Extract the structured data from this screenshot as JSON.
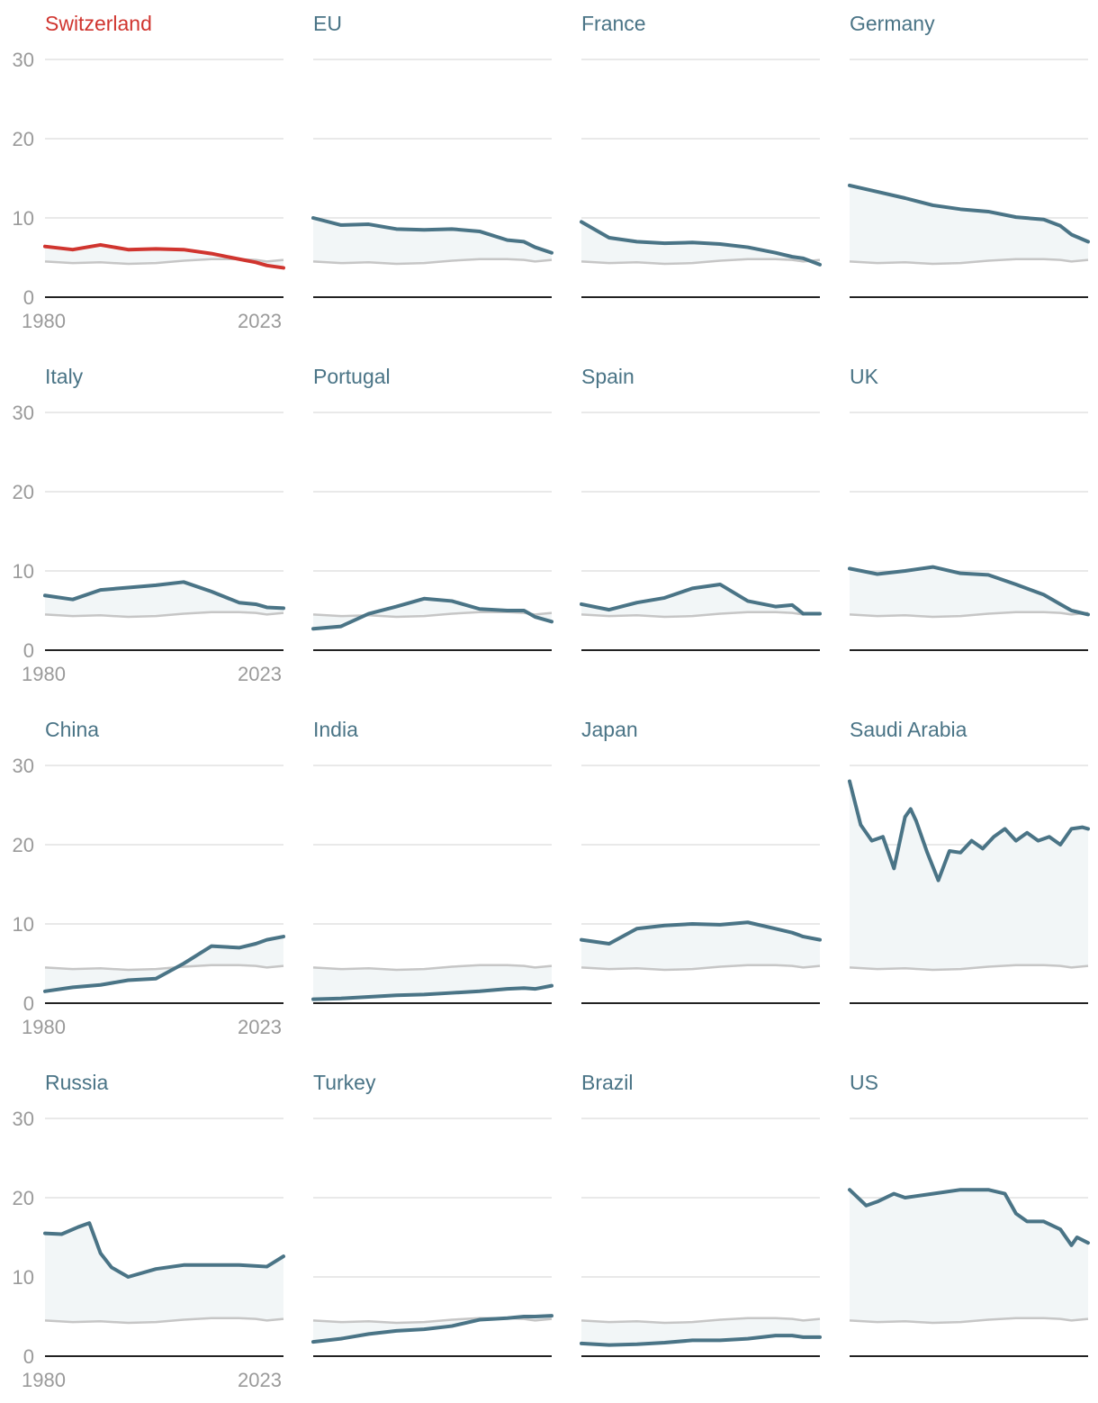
{
  "colors": {
    "highlight": "#d0352f",
    "series": "#4a7486",
    "title": "#4a7486",
    "reference": "#c6c6c6",
    "fill": "#f2f6f7",
    "grid": "#e2e2e2",
    "axis": "#222222",
    "tick": "#9a9a9a"
  },
  "chart_data": {
    "type": "line",
    "layout": "small-multiples",
    "grid": true,
    "ylim": [
      0,
      30
    ],
    "y_ticks": [
      "0",
      "10",
      "20",
      "30"
    ],
    "x_range": [
      1980,
      2023
    ],
    "x_tick_labels": [
      "1980",
      "2023"
    ],
    "highlight": "Switzerland",
    "reference_series": {
      "x": [
        1980,
        1985,
        1990,
        1995,
        2000,
        2005,
        2010,
        2015,
        2018,
        2020,
        2023
      ],
      "values": [
        4.5,
        4.3,
        4.4,
        4.2,
        4.3,
        4.6,
        4.8,
        4.8,
        4.7,
        4.5,
        4.7
      ]
    },
    "panels": [
      {
        "title": "Switzerland",
        "highlight": true,
        "show_axis_labels": true,
        "x": [
          1980,
          1985,
          1990,
          1995,
          2000,
          2005,
          2010,
          2015,
          2018,
          2020,
          2023
        ],
        "values": [
          6.4,
          6.0,
          6.6,
          6.0,
          6.1,
          6.0,
          5.5,
          4.8,
          4.4,
          4.0,
          3.7
        ]
      },
      {
        "title": "EU",
        "show_axis_labels": false,
        "x": [
          1980,
          1985,
          1990,
          1995,
          2000,
          2005,
          2010,
          2015,
          2018,
          2020,
          2023
        ],
        "values": [
          10.0,
          9.1,
          9.2,
          8.6,
          8.5,
          8.6,
          8.3,
          7.2,
          7.0,
          6.3,
          5.6
        ]
      },
      {
        "title": "France",
        "show_axis_labels": false,
        "x": [
          1980,
          1985,
          1990,
          1995,
          2000,
          2005,
          2010,
          2015,
          2018,
          2020,
          2023
        ],
        "values": [
          9.5,
          7.5,
          7.0,
          6.8,
          6.9,
          6.7,
          6.3,
          5.6,
          5.1,
          4.9,
          4.1
        ]
      },
      {
        "title": "Germany",
        "show_axis_labels": false,
        "x": [
          1980,
          1985,
          1990,
          1995,
          2000,
          2005,
          2010,
          2015,
          2018,
          2020,
          2023
        ],
        "values": [
          14.1,
          13.3,
          12.5,
          11.6,
          11.1,
          10.8,
          10.1,
          9.8,
          9.0,
          7.9,
          7.0
        ]
      },
      {
        "title": "Italy",
        "show_axis_labels": true,
        "x": [
          1980,
          1985,
          1990,
          1995,
          2000,
          2005,
          2010,
          2015,
          2018,
          2020,
          2023
        ],
        "values": [
          6.9,
          6.4,
          7.6,
          7.9,
          8.2,
          8.6,
          7.4,
          6.0,
          5.8,
          5.4,
          5.3
        ]
      },
      {
        "title": "Portugal",
        "show_axis_labels": false,
        "x": [
          1980,
          1985,
          1990,
          1995,
          2000,
          2005,
          2010,
          2015,
          2018,
          2020,
          2023
        ],
        "values": [
          2.7,
          3.0,
          4.6,
          5.5,
          6.5,
          6.2,
          5.2,
          5.0,
          5.0,
          4.2,
          3.6
        ]
      },
      {
        "title": "Spain",
        "show_axis_labels": false,
        "x": [
          1980,
          1985,
          1990,
          1995,
          2000,
          2005,
          2010,
          2015,
          2018,
          2020,
          2023
        ],
        "values": [
          5.8,
          5.1,
          6.0,
          6.6,
          7.8,
          8.3,
          6.2,
          5.5,
          5.7,
          4.6,
          4.6
        ]
      },
      {
        "title": "UK",
        "show_axis_labels": false,
        "x": [
          1980,
          1985,
          1990,
          1995,
          2000,
          2005,
          2010,
          2015,
          2018,
          2020,
          2023
        ],
        "values": [
          10.3,
          9.6,
          10.0,
          10.5,
          9.7,
          9.5,
          8.3,
          7.0,
          5.8,
          5.0,
          4.5
        ]
      },
      {
        "title": "China",
        "show_axis_labels": true,
        "x": [
          1980,
          1985,
          1990,
          1995,
          2000,
          2005,
          2010,
          2015,
          2018,
          2020,
          2023
        ],
        "values": [
          1.5,
          2.0,
          2.3,
          2.9,
          3.1,
          5.0,
          7.2,
          7.0,
          7.5,
          8.0,
          8.4
        ]
      },
      {
        "title": "India",
        "show_axis_labels": false,
        "x": [
          1980,
          1985,
          1990,
          1995,
          2000,
          2005,
          2010,
          2015,
          2018,
          2020,
          2023
        ],
        "values": [
          0.5,
          0.6,
          0.8,
          1.0,
          1.1,
          1.3,
          1.5,
          1.8,
          1.9,
          1.8,
          2.2
        ]
      },
      {
        "title": "Japan",
        "show_axis_labels": false,
        "x": [
          1980,
          1985,
          1990,
          1995,
          2000,
          2005,
          2010,
          2015,
          2018,
          2020,
          2023
        ],
        "values": [
          8.0,
          7.5,
          9.4,
          9.8,
          10.0,
          9.9,
          10.2,
          9.4,
          8.9,
          8.4,
          8.0
        ]
      },
      {
        "title": "Saudi Arabia",
        "show_axis_labels": false,
        "x": [
          1980,
          1982,
          1984,
          1986,
          1988,
          1990,
          1991,
          1992,
          1994,
          1996,
          1998,
          2000,
          2002,
          2004,
          2006,
          2008,
          2010,
          2012,
          2014,
          2016,
          2018,
          2020,
          2022,
          2023
        ],
        "values": [
          28.0,
          22.5,
          20.5,
          21.0,
          17.0,
          23.5,
          24.5,
          23.0,
          19.0,
          15.5,
          19.2,
          19.0,
          20.5,
          19.5,
          21.0,
          22.0,
          20.5,
          21.5,
          20.5,
          21.0,
          20.0,
          22.0,
          22.2,
          22.0
        ]
      },
      {
        "title": "Russia",
        "show_axis_labels": true,
        "x": [
          1980,
          1983,
          1986,
          1988,
          1990,
          1992,
          1995,
          2000,
          2005,
          2010,
          2015,
          2020,
          2023
        ],
        "values": [
          15.5,
          15.4,
          16.3,
          16.8,
          13.0,
          11.2,
          10.0,
          11.0,
          11.5,
          11.5,
          11.5,
          11.3,
          12.6
        ]
      },
      {
        "title": "Turkey",
        "show_axis_labels": false,
        "x": [
          1980,
          1985,
          1990,
          1995,
          2000,
          2005,
          2010,
          2015,
          2018,
          2020,
          2023
        ],
        "values": [
          1.8,
          2.2,
          2.8,
          3.2,
          3.4,
          3.8,
          4.6,
          4.8,
          5.0,
          5.0,
          5.1
        ]
      },
      {
        "title": "Brazil",
        "show_axis_labels": false,
        "x": [
          1980,
          1985,
          1990,
          1995,
          2000,
          2005,
          2010,
          2015,
          2018,
          2020,
          2023
        ],
        "values": [
          1.6,
          1.4,
          1.5,
          1.7,
          2.0,
          2.0,
          2.2,
          2.6,
          2.6,
          2.4,
          2.4
        ]
      },
      {
        "title": "US",
        "show_axis_labels": false,
        "x": [
          1980,
          1983,
          1985,
          1988,
          1990,
          1995,
          2000,
          2005,
          2008,
          2010,
          2012,
          2015,
          2018,
          2020,
          2021,
          2023
        ],
        "values": [
          21.0,
          19.0,
          19.5,
          20.5,
          20.0,
          20.5,
          21.0,
          21.0,
          20.5,
          18.0,
          17.0,
          17.0,
          16.0,
          14.0,
          15.0,
          14.3
        ]
      }
    ]
  }
}
